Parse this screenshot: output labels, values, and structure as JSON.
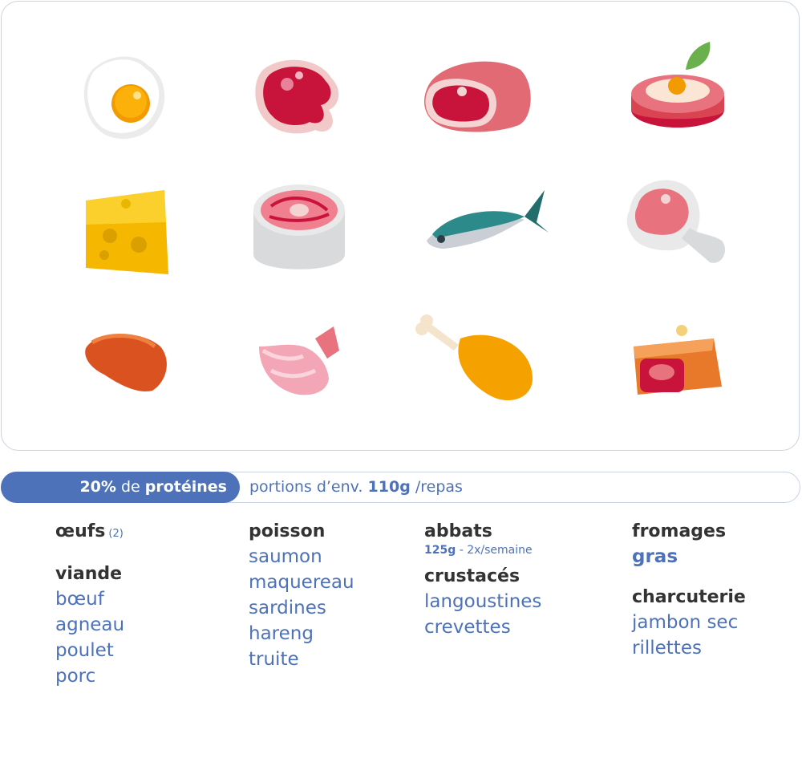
{
  "header": {
    "percent": "20%",
    "de": "de",
    "proteins": "protéines",
    "portions_prefix": "portions d’env.",
    "portion_weight": "110g",
    "portions_suffix": "/repas"
  },
  "columns": {
    "col1": {
      "oeufs": "œufs",
      "oeufs_badge": "(2)",
      "viande": "viande",
      "items": [
        "bœuf",
        "agneau",
        "poulet",
        "porc"
      ]
    },
    "col2": {
      "title": "poisson",
      "items": [
        "saumon",
        "maquereau",
        "sardines",
        "hareng",
        "truite"
      ]
    },
    "col3": {
      "abbats": "abbats",
      "abbats_amount": "125g",
      "abbats_freq": "- 2x/semaine",
      "crustaces": "crustacés",
      "items": [
        "langoustines",
        "crevettes"
      ]
    },
    "col4": {
      "fromages": "fromages",
      "gras": "gras",
      "charcuterie": "charcuterie",
      "items": [
        "jambon sec",
        "rillettes"
      ]
    }
  },
  "icons": [
    "fried-egg-icon",
    "steak-icon",
    "ham-icon",
    "steak-egg-icon",
    "cheese-icon",
    "salmon-steak-icon",
    "fish-icon",
    "ham-bone-icon",
    "liver-icon",
    "shrimp-icon",
    "chicken-leg-icon",
    "pate-icon"
  ],
  "colors": {
    "accent": "#4d72ba",
    "heading": "#333333",
    "border": "#c9d3e3"
  }
}
